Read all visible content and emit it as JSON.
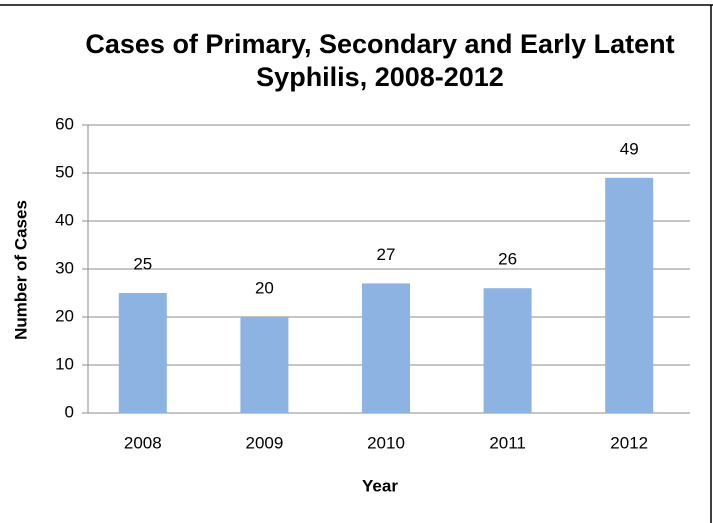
{
  "chart_data": {
    "type": "bar",
    "title": "Cases of Primary, Secondary and Early Latent Syphilis, 2008-2012",
    "x_label": "Year",
    "y_label": "Number of Cases",
    "categories": [
      "2008",
      "2009",
      "2010",
      "2011",
      "2012"
    ],
    "values": [
      25,
      20,
      27,
      26,
      49
    ],
    "color": "#8db3e2",
    "ylim": [
      0,
      60
    ],
    "yticks": [
      0,
      10,
      20,
      30,
      40,
      50,
      60
    ],
    "grid": true
  }
}
